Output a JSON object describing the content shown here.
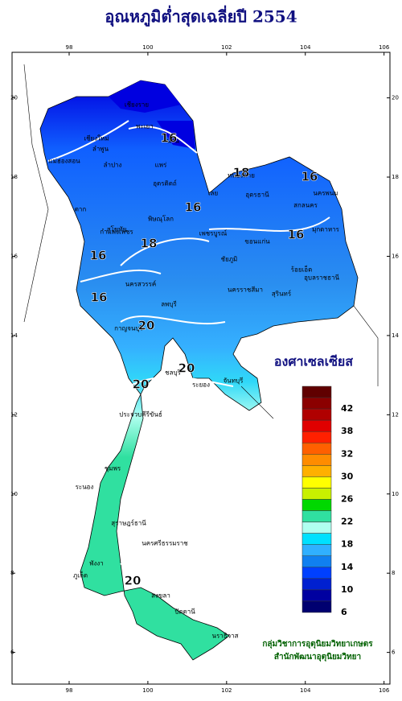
{
  "title": "อุณหภูมิต่ำสุดเฉลี่ยปี 2554",
  "map": {
    "lon_range": [
      96.55,
      106.15
    ],
    "lat_range": [
      5.2,
      21.15
    ],
    "lon_ticks": [
      98,
      100,
      102,
      104,
      106
    ],
    "lat_ticks": [
      20,
      18,
      16,
      14,
      12,
      10,
      8,
      6
    ],
    "contour_labels": [
      16,
      16,
      18,
      16,
      16,
      16,
      18,
      16,
      20,
      20,
      20,
      20
    ],
    "places": [
      "เชียงราย",
      "เชียงใหม่",
      "ลำพูน",
      "พะเยา",
      "น่าน",
      "แพร่",
      "ลำปาง",
      "แม่ฮ่องสอน",
      "อุตรดิตถ์",
      "ตาก",
      "สุโขทัย",
      "พิษณุโลก",
      "กำแพงเพชร",
      "เพชรบูรณ์",
      "นครสวรรค์",
      "ลพบุรี",
      "หนองคาย",
      "อุดรธานี",
      "นครพนม",
      "สกลนคร",
      "มุกดาหาร",
      "เลย",
      "ขอนแก่น",
      "ร้อยเอ็ด",
      "ชัยภูมิ",
      "นครราชสีมา",
      "สุรินทร์",
      "อุบลราชธานี",
      "กาญจนบุรี",
      "ชลบุรี",
      "ระยอง",
      "จันทบุรี",
      "ประจวบคีรีขันธ์",
      "ชุมพร",
      "ระนอง",
      "สุราษฎร์ธานี",
      "นครศรีธรรมราช",
      "พังงา",
      "ภูเก็ต",
      "สงขลา",
      "ปัตตานี",
      "นราธิวาส"
    ]
  },
  "legend": {
    "title": "องศาเซลเซียส",
    "labels": [
      42,
      38,
      32,
      30,
      26,
      22,
      18,
      14,
      10,
      6
    ],
    "colors": [
      "#600000",
      "#8b0000",
      "#b00000",
      "#e00000",
      "#ff2000",
      "#ff6000",
      "#ff8c00",
      "#ffb000",
      "#ffff00",
      "#c8f000",
      "#00d800",
      "#30e0a0",
      "#b0fff0",
      "#00e0ff",
      "#30b0ff",
      "#1080f0",
      "#0040ff",
      "#0020d0",
      "#0000a0",
      "#000070"
    ]
  },
  "footer": [
    "กลุ่มวิชาการอุตุนิยมวิทยาเกษตร",
    "สำนักพัฒนาอุตุนิยมวิทยา"
  ]
}
